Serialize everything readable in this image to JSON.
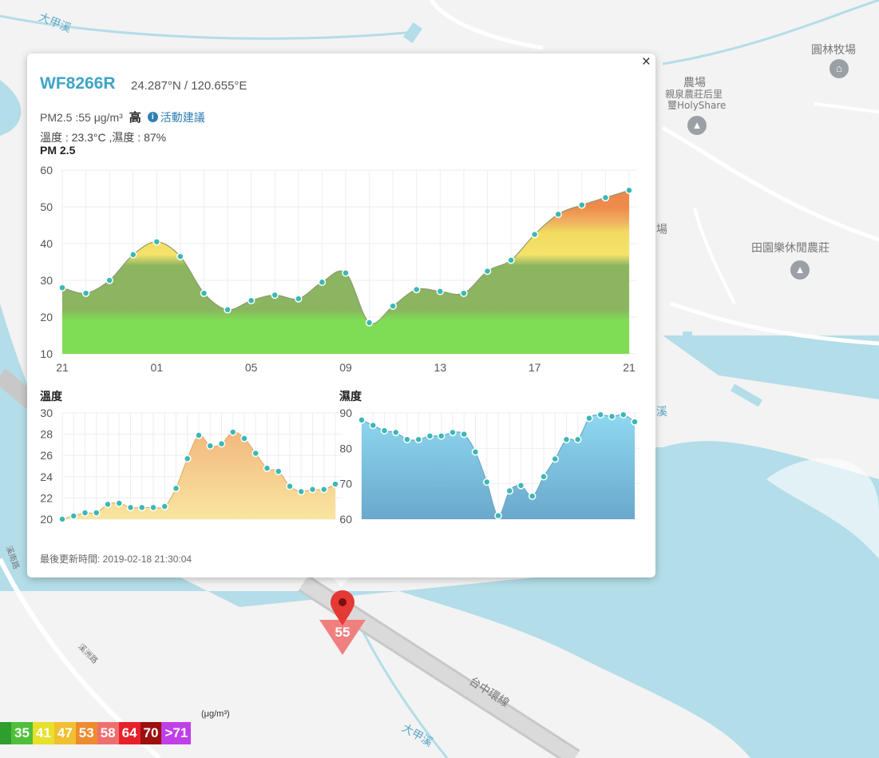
{
  "map": {
    "labels": [
      {
        "text": "大甲溪",
        "water": true
      },
      {
        "text": "圓林牧場",
        "water": false
      },
      {
        "text": "農場",
        "water": false
      },
      {
        "text": "親泉農莊后里",
        "water": false
      },
      {
        "text": "璽HolyShare",
        "water": false
      },
      {
        "text": "田園樂休閒農莊",
        "water": false
      },
      {
        "text": "場",
        "water": false
      },
      {
        "text": "溪",
        "water": true
      },
      {
        "text": "台中環線",
        "water": false
      },
      {
        "text": "大甲溪",
        "water": true
      },
      {
        "text": "溪洲路",
        "water": false
      },
      {
        "text": "溪南路",
        "water": false
      }
    ]
  },
  "popup": {
    "close": "×",
    "station_id": "WF8266R",
    "coords": "24.287°N / 120.655°E",
    "pm_text": "PM2.5 :55 μg/m³",
    "pm_level": "高",
    "info_icon": "i",
    "advice": "活動建議",
    "temp_humidity": "溫度 : 23.3°C ,濕度 : 87%",
    "updated": "最後更新時間: 2019-02-18 21:30:04"
  },
  "marker": {
    "value": "55",
    "color": "#f08080"
  },
  "legend": {
    "unit": "(μg/m³)",
    "items": [
      {
        "label": "",
        "color": "#2e9e2e"
      },
      {
        "label": "35",
        "color": "#4fbf3a"
      },
      {
        "label": "41",
        "color": "#e8e02a"
      },
      {
        "label": "47",
        "color": "#f0c030"
      },
      {
        "label": "53",
        "color": "#ee8a30"
      },
      {
        "label": "58",
        "color": "#ef6f6f"
      },
      {
        "label": "64",
        "color": "#e8202a"
      },
      {
        "label": "70",
        "color": "#9c1010"
      },
      {
        "label": ">71",
        "color": "#c040e8"
      }
    ]
  },
  "chart_data": [
    {
      "type": "area",
      "title": "PM 2.5",
      "ylim": [
        10,
        60
      ],
      "yticks": [
        10,
        20,
        30,
        40,
        50,
        60
      ],
      "xticks": [
        "21",
        "01",
        "05",
        "09",
        "13",
        "17",
        "21"
      ],
      "values": [
        28,
        26.5,
        30,
        37,
        40.5,
        36.5,
        26.5,
        22,
        24.5,
        26,
        25,
        29.5,
        32,
        18.5,
        23,
        27.5,
        27,
        26.5,
        32.5,
        35.5,
        42.5,
        48,
        50.5,
        52.5,
        54.5
      ]
    },
    {
      "type": "area",
      "title": "溫度",
      "ylim": [
        20,
        30
      ],
      "yticks": [
        20,
        22,
        24,
        26,
        28,
        30
      ],
      "values": [
        20,
        20.3,
        20.6,
        20.6,
        21.4,
        21.5,
        21.1,
        21.1,
        21.1,
        21.2,
        22.9,
        25.7,
        27.9,
        26.9,
        27.1,
        28.2,
        27.6,
        26.2,
        24.8,
        24.5,
        23.1,
        22.6,
        22.8,
        22.8,
        23.3
      ]
    },
    {
      "type": "area",
      "title": "濕度",
      "ylim": [
        60,
        90
      ],
      "yticks": [
        60,
        70,
        80,
        90
      ],
      "values": [
        88,
        86.5,
        85,
        84.5,
        82.5,
        82.5,
        83.5,
        83.5,
        84.5,
        84,
        79,
        70.5,
        61,
        68,
        69.5,
        66.5,
        72,
        77,
        82.5,
        82.5,
        88.5,
        89.5,
        89,
        89.5,
        87.5
      ]
    }
  ]
}
